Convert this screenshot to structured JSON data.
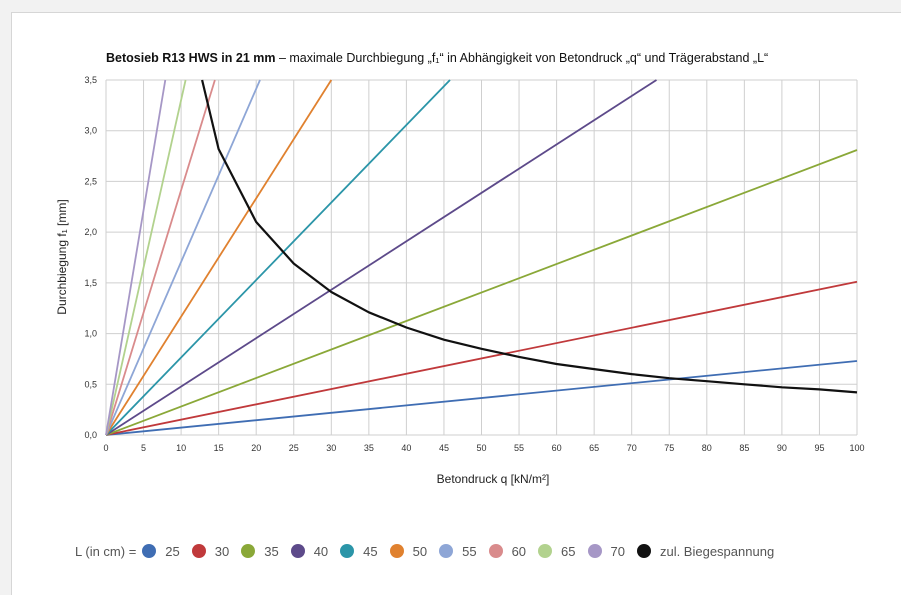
{
  "chart_data": {
    "type": "line",
    "title_bold": "Betosieb R13 HWS in 21 mm",
    "title_rest": " – maximale Durchbiegung „f₁“ in Abhängigkeit von Betondruck „q“ und Trägerabstand „L“",
    "xlabel": "Betondruck q [kN/m²]",
    "ylabel": "Durchbiegung f₁ [mm]",
    "xlim": [
      0,
      100
    ],
    "ylim": [
      0,
      3.5
    ],
    "xticks": [
      "0",
      "5",
      "10",
      "15",
      "20",
      "25",
      "30",
      "35",
      "40",
      "45",
      "50",
      "55",
      "60",
      "65",
      "70",
      "75",
      "80",
      "85",
      "90",
      "95",
      "100"
    ],
    "yticks": [
      "0,0",
      "0,5",
      "1,0",
      "1,5",
      "2,0",
      "2,5",
      "3,0",
      "3,5"
    ],
    "grid": true,
    "legend_title": "L (in cm) =",
    "legend_position": "bottom",
    "series": [
      {
        "name": "25",
        "color": "#3f6db3",
        "x": [
          0,
          100
        ],
        "y": [
          0,
          0.73
        ]
      },
      {
        "name": "30",
        "color": "#c0393b",
        "x": [
          0,
          100
        ],
        "y": [
          0,
          1.51
        ]
      },
      {
        "name": "35",
        "color": "#8aa838",
        "x": [
          0,
          100
        ],
        "y": [
          0,
          2.81
        ]
      },
      {
        "name": "40",
        "color": "#5d4a8a",
        "x": [
          0,
          73.3
        ],
        "y": [
          0,
          3.5
        ]
      },
      {
        "name": "45",
        "color": "#2b95a8",
        "x": [
          0,
          45.8
        ],
        "y": [
          0,
          3.5
        ]
      },
      {
        "name": "50",
        "color": "#e0812f",
        "x": [
          0,
          30
        ],
        "y": [
          0,
          3.5
        ]
      },
      {
        "name": "55",
        "color": "#8ea6d6",
        "x": [
          0,
          20.5
        ],
        "y": [
          0,
          3.5
        ]
      },
      {
        "name": "60",
        "color": "#d98b8c",
        "x": [
          0,
          14.5
        ],
        "y": [
          0,
          3.5
        ]
      },
      {
        "name": "65",
        "color": "#b2d28e",
        "x": [
          0,
          10.6
        ],
        "y": [
          0,
          3.5
        ]
      },
      {
        "name": "70",
        "color": "#a697c6",
        "x": [
          0,
          7.9
        ],
        "y": [
          0,
          3.5
        ]
      },
      {
        "name": "zul. Biegespannung",
        "color": "#111111",
        "x": [
          12.8,
          15,
          20,
          25,
          30,
          35,
          40,
          45,
          50,
          55,
          60,
          65,
          70,
          75,
          80,
          85,
          90,
          95,
          100
        ],
        "y": [
          3.5,
          2.82,
          2.1,
          1.69,
          1.41,
          1.21,
          1.06,
          0.94,
          0.85,
          0.77,
          0.7,
          0.65,
          0.6,
          0.56,
          0.53,
          0.5,
          0.47,
          0.45,
          0.42
        ]
      }
    ]
  }
}
